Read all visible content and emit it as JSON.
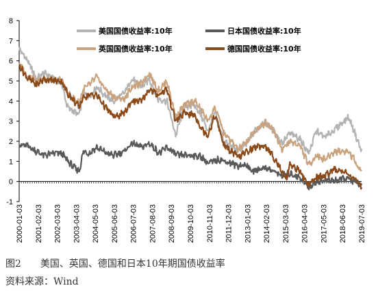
{
  "chart_data": {
    "type": "line",
    "ylim": [
      -1,
      8
    ],
    "yticks": [
      -1,
      0,
      1,
      2,
      3,
      4,
      5,
      6,
      7,
      8
    ],
    "xlim": [
      "2000-01-03",
      "2019-07-03"
    ],
    "xtick_labels": [
      "2000-01-03",
      "2001-02-03",
      "2002-03-03",
      "2003-04-03",
      "2004-05-03",
      "2005-06-03",
      "2006-07-03",
      "2007-08-03",
      "2008-09-03",
      "2009-10-03",
      "2010-11-03",
      "2011-12-03",
      "2013-01-03",
      "2014-02-03",
      "2015-03-03",
      "2016-04-03",
      "2017-05-03",
      "2018-06-03",
      "2019-07-03"
    ],
    "legend_position": "top",
    "series": [
      {
        "name": "美国国债收益率:10年",
        "color": "#b3b3b3",
        "x": [
          "2000-01",
          "2000-06",
          "2001-01",
          "2001-06",
          "2002-01",
          "2002-06",
          "2002-10",
          "2003-06",
          "2003-09",
          "2004-01",
          "2004-06",
          "2005-01",
          "2005-06",
          "2006-01",
          "2006-06",
          "2007-01",
          "2007-06",
          "2007-12",
          "2008-06",
          "2008-12",
          "2009-06",
          "2010-01",
          "2010-06",
          "2010-10",
          "2011-03",
          "2011-09",
          "2012-07",
          "2013-01",
          "2013-06",
          "2014-01",
          "2014-06",
          "2015-01",
          "2015-06",
          "2016-01",
          "2016-07",
          "2016-12",
          "2017-06",
          "2018-01",
          "2018-10",
          "2019-01",
          "2019-07"
        ],
        "y": [
          6.6,
          6.1,
          5.1,
          5.4,
          5.1,
          4.9,
          3.7,
          3.3,
          4.4,
          4.2,
          4.7,
          4.2,
          4.0,
          4.4,
          5.1,
          4.7,
          5.1,
          4.1,
          4.0,
          2.3,
          3.7,
          3.8,
          3.2,
          2.5,
          3.4,
          2.0,
          1.5,
          1.9,
          2.5,
          3.0,
          2.6,
          1.9,
          2.4,
          2.1,
          1.4,
          2.5,
          2.2,
          2.6,
          3.2,
          2.7,
          1.5
        ]
      },
      {
        "name": "日本国债收益率:10年",
        "color": "#595959",
        "x": [
          "2000-01",
          "2000-06",
          "2001-01",
          "2001-06",
          "2002-01",
          "2002-06",
          "2003-01",
          "2003-06",
          "2003-09",
          "2004-01",
          "2004-06",
          "2005-01",
          "2005-06",
          "2006-01",
          "2006-06",
          "2007-01",
          "2007-06",
          "2008-01",
          "2008-06",
          "2009-01",
          "2010-01",
          "2010-06",
          "2010-10",
          "2011-06",
          "2012-06",
          "2013-01",
          "2013-04",
          "2014-01",
          "2015-01",
          "2015-06",
          "2016-01",
          "2016-07",
          "2016-12",
          "2017-06",
          "2018-01",
          "2018-10",
          "2019-01",
          "2019-07"
        ],
        "y": [
          1.8,
          1.8,
          1.5,
          1.3,
          1.4,
          1.4,
          0.8,
          0.5,
          1.5,
          1.4,
          1.7,
          1.4,
          1.3,
          1.5,
          1.9,
          1.7,
          1.9,
          1.4,
          1.7,
          1.3,
          1.3,
          1.2,
          0.9,
          1.1,
          0.8,
          0.8,
          0.5,
          0.7,
          0.3,
          0.4,
          0.2,
          -0.3,
          0.0,
          0.05,
          0.05,
          0.15,
          0.0,
          -0.15
        ]
      },
      {
        "name": "英国国债收益率:10年",
        "color": "#c9a37e",
        "x": [
          "2000-01",
          "2000-06",
          "2001-01",
          "2001-06",
          "2002-01",
          "2002-06",
          "2002-10",
          "2003-06",
          "2003-09",
          "2004-01",
          "2004-06",
          "2005-01",
          "2005-06",
          "2006-01",
          "2006-06",
          "2007-01",
          "2007-06",
          "2007-12",
          "2008-06",
          "2008-12",
          "2009-06",
          "2010-01",
          "2010-06",
          "2010-10",
          "2011-03",
          "2011-09",
          "2012-07",
          "2013-01",
          "2013-06",
          "2014-01",
          "2014-06",
          "2015-01",
          "2015-06",
          "2016-01",
          "2016-07",
          "2016-12",
          "2017-06",
          "2018-01",
          "2018-10",
          "2019-01",
          "2019-07"
        ],
        "y": [
          5.9,
          5.3,
          5.0,
          5.1,
          5.0,
          5.1,
          4.4,
          3.9,
          4.6,
          4.8,
          5.2,
          4.5,
          4.2,
          4.1,
          4.7,
          4.9,
          5.4,
          4.5,
          5.0,
          3.2,
          3.8,
          4.0,
          3.5,
          3.0,
          3.7,
          2.4,
          1.6,
          2.0,
          2.5,
          2.9,
          2.7,
          1.6,
          2.0,
          1.8,
          0.8,
          1.3,
          1.1,
          1.5,
          1.5,
          1.2,
          0.5
        ]
      },
      {
        "name": "德国国债收益率:10年",
        "color": "#8b4a1a",
        "x": [
          "2000-01",
          "2000-06",
          "2001-01",
          "2001-06",
          "2002-01",
          "2002-06",
          "2002-10",
          "2003-06",
          "2003-09",
          "2004-01",
          "2004-06",
          "2005-01",
          "2005-06",
          "2006-01",
          "2006-06",
          "2007-01",
          "2007-06",
          "2007-12",
          "2008-06",
          "2008-12",
          "2009-06",
          "2010-01",
          "2010-06",
          "2010-10",
          "2011-03",
          "2011-09",
          "2012-07",
          "2013-01",
          "2013-06",
          "2014-01",
          "2014-06",
          "2015-01",
          "2015-04",
          "2015-06",
          "2016-01",
          "2016-07",
          "2016-12",
          "2017-06",
          "2018-01",
          "2018-10",
          "2019-01",
          "2019-07"
        ],
        "y": [
          5.8,
          5.2,
          4.8,
          5.1,
          5.0,
          5.0,
          4.4,
          3.7,
          4.2,
          4.3,
          4.3,
          3.6,
          3.2,
          3.4,
          4.0,
          4.0,
          4.6,
          4.3,
          4.6,
          3.0,
          3.4,
          3.3,
          2.6,
          2.3,
          3.3,
          1.8,
          1.2,
          1.5,
          1.7,
          1.8,
          1.3,
          0.5,
          0.1,
          0.9,
          0.5,
          -0.2,
          0.2,
          0.3,
          0.6,
          0.4,
          0.2,
          -0.3
        ]
      }
    ]
  },
  "captions": {
    "line1": "图2　　美国、英国、德国和日本10年期国债收益率",
    "line2": "资料来源：Wind"
  }
}
